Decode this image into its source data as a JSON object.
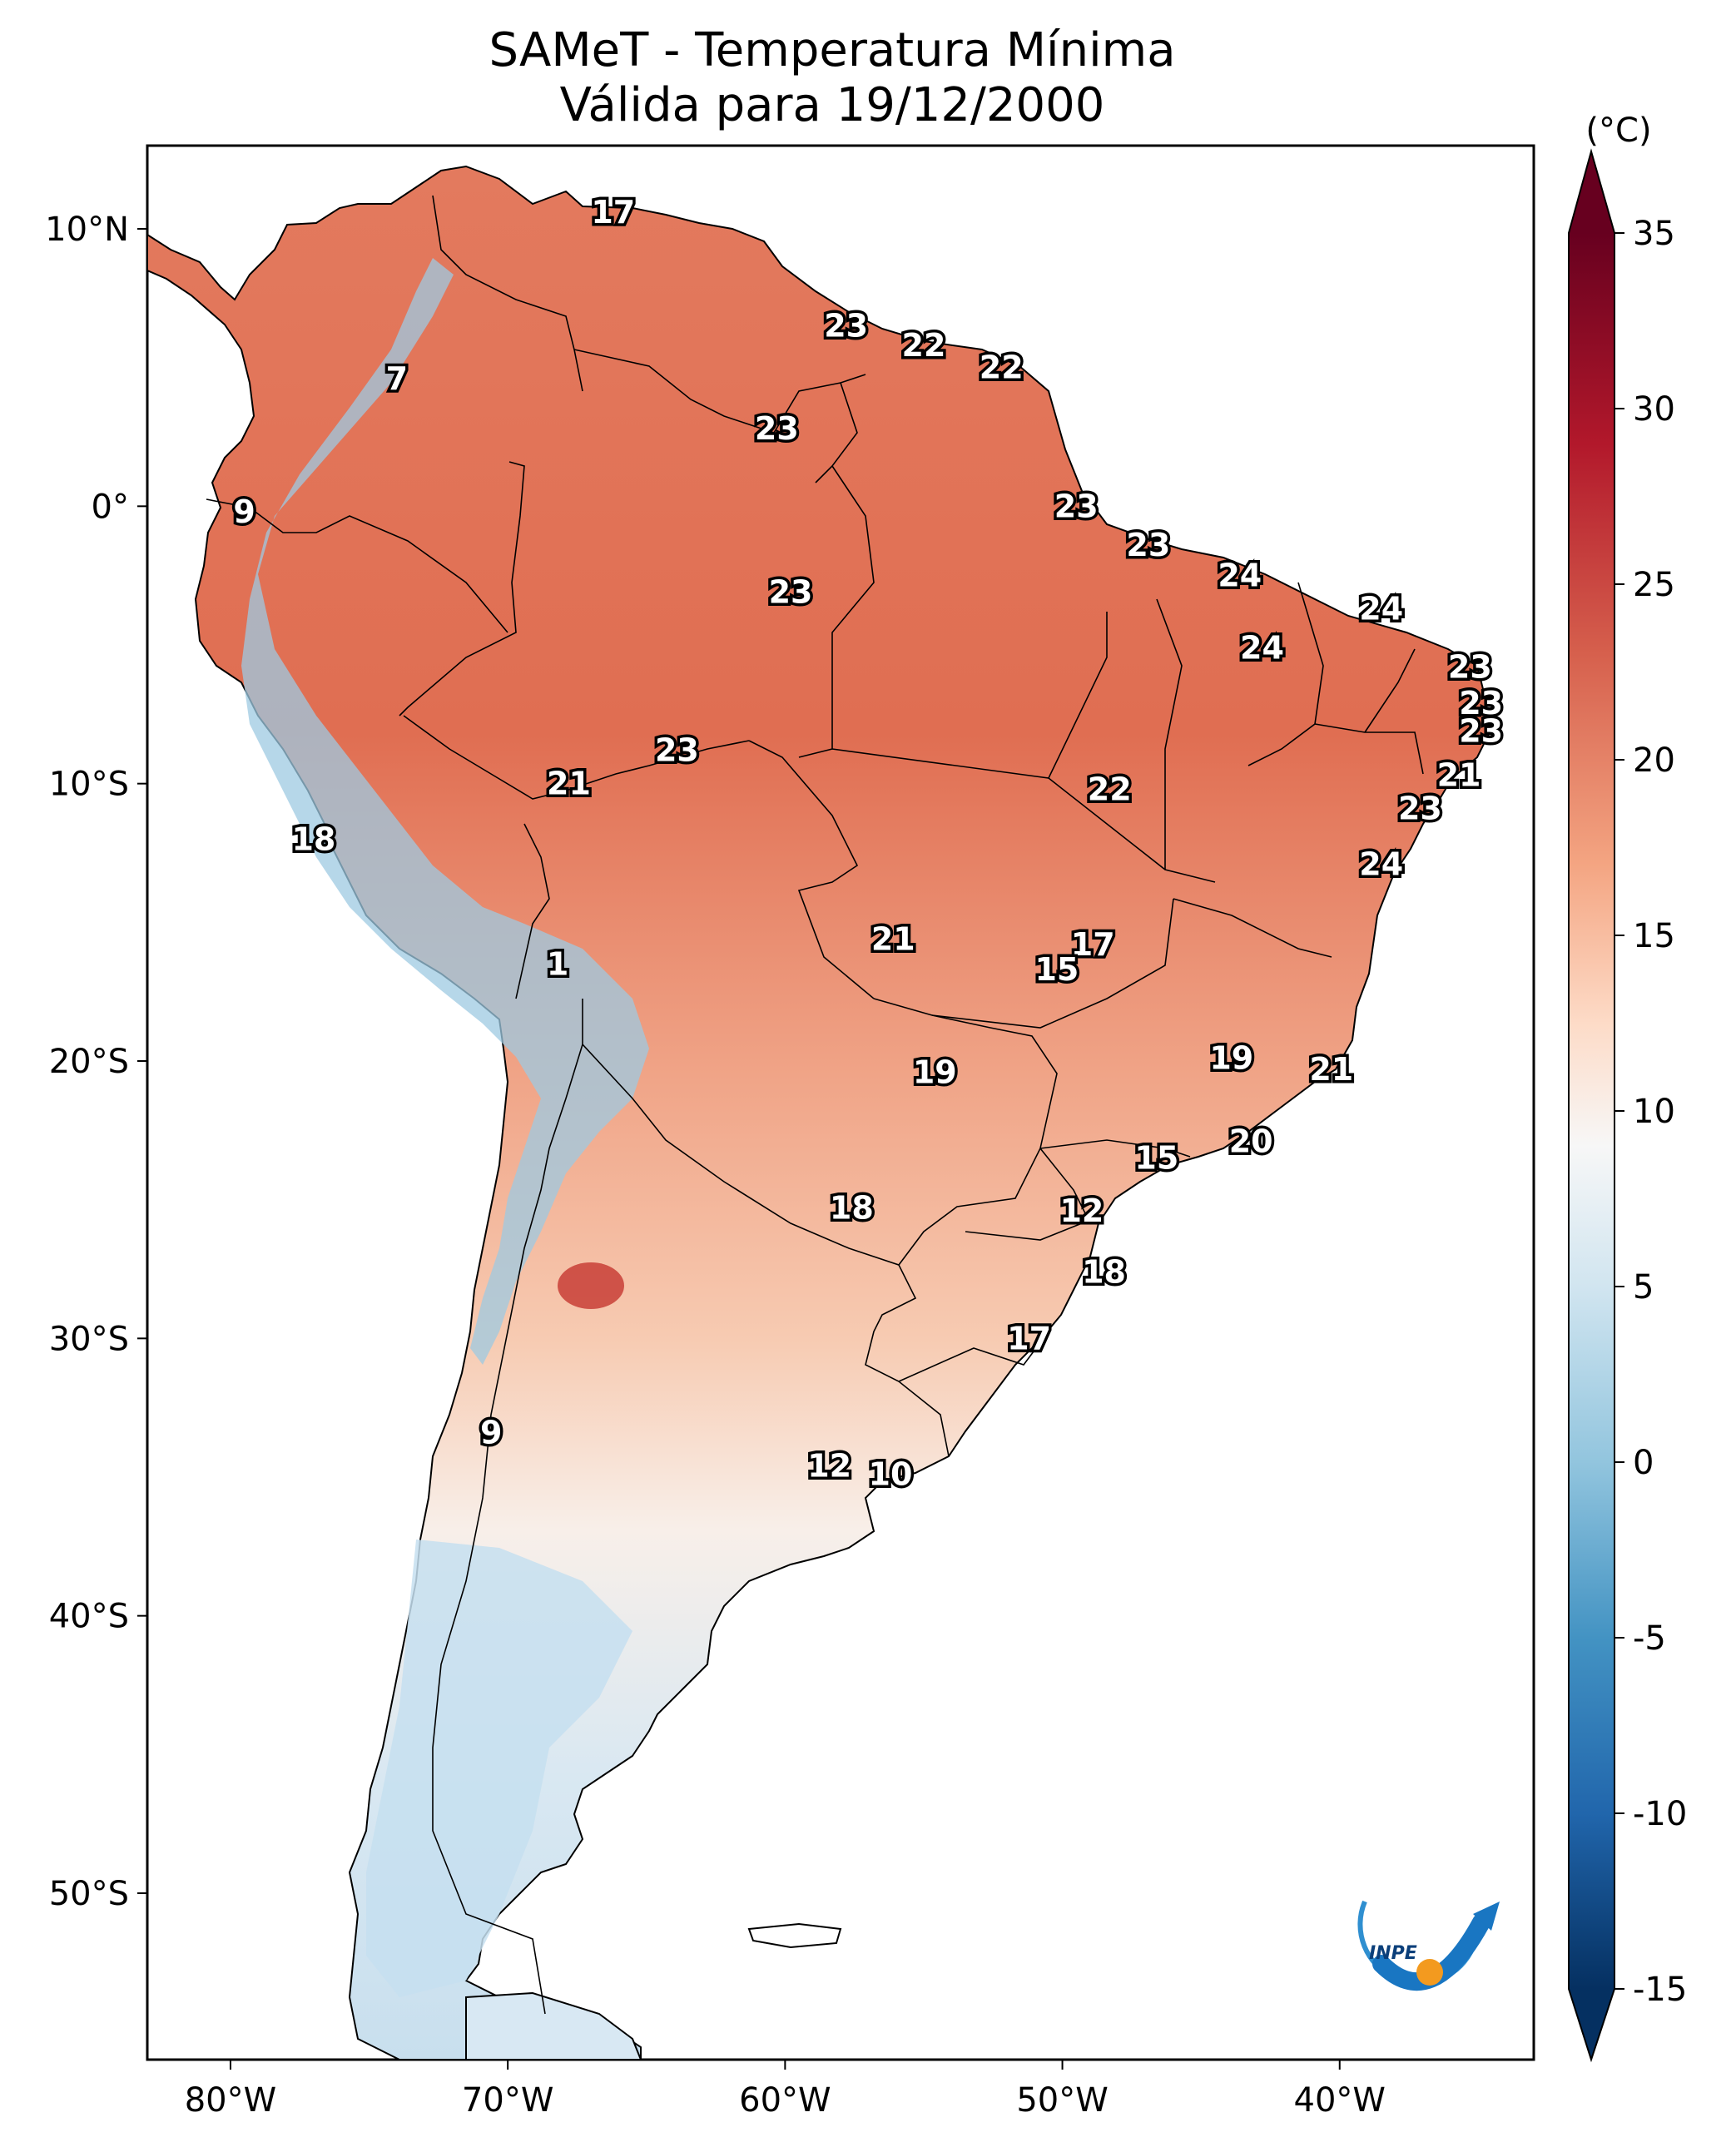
{
  "header": {
    "title_line1": "SAMeT - Temperatura Mínima",
    "title_line2": "Válida para 19/12/2000"
  },
  "logo": {
    "text": "INPE"
  },
  "colorbar": {
    "unit": "(°C)",
    "ticks": [
      "35",
      "30",
      "25",
      "20",
      "15",
      "10",
      "5",
      "0",
      "-5",
      "-10",
      "-15"
    ],
    "colors": {
      "dark_red": "#67001f",
      "red": "#b2182b",
      "orange_red": "#d6604d",
      "salmon": "#f4a582",
      "peach": "#fddbc7",
      "white": "#f7f7f7",
      "light_blue": "#d1e5f0",
      "sky": "#92c5de",
      "blue": "#4393c3",
      "deep_blue": "#2166ac",
      "navy": "#053061"
    }
  },
  "axes": {
    "lon_labels": [
      "80°W",
      "70°W",
      "60°W",
      "50°W",
      "40°W"
    ],
    "lat_labels": [
      "10°N",
      "0°",
      "10°S",
      "20°S",
      "30°S",
      "40°S",
      "50°S"
    ]
  },
  "chart_data": {
    "type": "heatmap",
    "title": "SAMeT - Temperatura Mínima / Válida para 19/12/2000",
    "units": "°C",
    "colorbar_range": [
      -15,
      35
    ],
    "lon_range": [
      -83,
      -33
    ],
    "lat_range": [
      -56,
      13
    ],
    "point_labels": [
      {
        "lon": -66.2,
        "lat": 10.6,
        "value": "17"
      },
      {
        "lon": -57.8,
        "lat": 6.5,
        "value": "23"
      },
      {
        "lon": -55.0,
        "lat": 5.8,
        "value": "22"
      },
      {
        "lon": -52.2,
        "lat": 5.0,
        "value": "22"
      },
      {
        "lon": -74.0,
        "lat": 4.6,
        "value": "7"
      },
      {
        "lon": -60.3,
        "lat": 2.8,
        "value": "23"
      },
      {
        "lon": -79.5,
        "lat": -0.2,
        "value": "9"
      },
      {
        "lon": -49.5,
        "lat": 0.0,
        "value": "23"
      },
      {
        "lon": -46.9,
        "lat": -1.4,
        "value": "23"
      },
      {
        "lon": -43.6,
        "lat": -2.5,
        "value": "24"
      },
      {
        "lon": -59.8,
        "lat": -3.1,
        "value": "23"
      },
      {
        "lon": -38.5,
        "lat": -3.7,
        "value": "24"
      },
      {
        "lon": -42.8,
        "lat": -5.1,
        "value": "24"
      },
      {
        "lon": -35.3,
        "lat": -5.8,
        "value": "23"
      },
      {
        "lon": -34.9,
        "lat": -7.1,
        "value": "23"
      },
      {
        "lon": -34.9,
        "lat": -8.1,
        "value": "23"
      },
      {
        "lon": -63.9,
        "lat": -8.8,
        "value": "23"
      },
      {
        "lon": -35.7,
        "lat": -9.7,
        "value": "21"
      },
      {
        "lon": -67.8,
        "lat": -10.0,
        "value": "21"
      },
      {
        "lon": -48.3,
        "lat": -10.2,
        "value": "22"
      },
      {
        "lon": -37.1,
        "lat": -10.9,
        "value": "23"
      },
      {
        "lon": -38.5,
        "lat": -12.9,
        "value": "24"
      },
      {
        "lon": -77.0,
        "lat": -12.0,
        "value": "18"
      },
      {
        "lon": -56.1,
        "lat": -15.6,
        "value": "21"
      },
      {
        "lon": -48.9,
        "lat": -15.8,
        "value": "17"
      },
      {
        "lon": -50.2,
        "lat": -16.7,
        "value": "15"
      },
      {
        "lon": -68.2,
        "lat": -16.5,
        "value": "1"
      },
      {
        "lon": -43.9,
        "lat": -19.9,
        "value": "19"
      },
      {
        "lon": -54.6,
        "lat": -20.4,
        "value": "19"
      },
      {
        "lon": -40.3,
        "lat": -20.3,
        "value": "21"
      },
      {
        "lon": -43.2,
        "lat": -22.9,
        "value": "20"
      },
      {
        "lon": -46.6,
        "lat": -23.5,
        "value": "15"
      },
      {
        "lon": -49.3,
        "lat": -25.4,
        "value": "12"
      },
      {
        "lon": -57.6,
        "lat": -25.3,
        "value": "18"
      },
      {
        "lon": -48.5,
        "lat": -27.6,
        "value": "18"
      },
      {
        "lon": -51.2,
        "lat": -30.0,
        "value": "17"
      },
      {
        "lon": -70.6,
        "lat": -33.4,
        "value": "9"
      },
      {
        "lon": -58.4,
        "lat": -34.6,
        "value": "12"
      },
      {
        "lon": -56.2,
        "lat": -34.9,
        "value": "10"
      }
    ]
  }
}
